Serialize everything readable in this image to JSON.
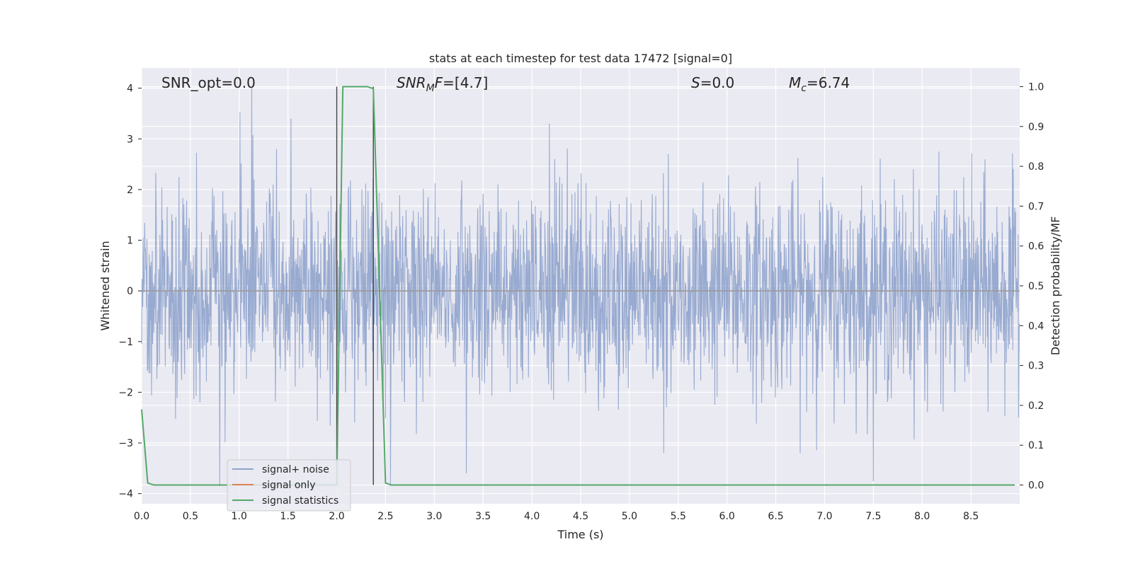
{
  "chart_data": {
    "type": "line",
    "title": "stats at each timestep for test data 17472 [signal=0]",
    "xlabel": "Time (s)",
    "ylabel_left": "Whitened strain",
    "ylabel_right": "Detection probability/MF",
    "xlim": [
      0.0,
      9.0
    ],
    "ylim_left": [
      -4.2,
      4.4
    ],
    "ylim_right": [
      -0.047,
      1.047
    ],
    "x_ticks": [
      "0.0",
      "0.5",
      "1.0",
      "1.5",
      "2.0",
      "2.5",
      "3.0",
      "3.5",
      "4.0",
      "4.5",
      "5.0",
      "5.5",
      "6.0",
      "6.5",
      "7.0",
      "7.5",
      "8.0",
      "8.5"
    ],
    "x_tick_values": [
      0.0,
      0.5,
      1.0,
      1.5,
      2.0,
      2.5,
      3.0,
      3.5,
      4.0,
      4.5,
      5.0,
      5.5,
      6.0,
      6.5,
      7.0,
      7.5,
      8.0,
      8.5
    ],
    "y_left_ticks": [
      "−4",
      "−3",
      "−2",
      "−1",
      "0",
      "1",
      "2",
      "3",
      "4"
    ],
    "y_left_tick_values": [
      -4,
      -3,
      -2,
      -1,
      0,
      1,
      2,
      3,
      4
    ],
    "y_right_ticks": [
      "0.0",
      "0.1",
      "0.2",
      "0.3",
      "0.4",
      "0.5",
      "0.6",
      "0.7",
      "0.8",
      "0.9",
      "1.0"
    ],
    "y_right_tick_values": [
      0.0,
      0.1,
      0.2,
      0.3,
      0.4,
      0.5,
      0.6,
      0.7,
      0.8,
      0.9,
      1.0
    ],
    "grid": true,
    "annotations": {
      "snr_opt": "SNR_opt=0.0",
      "snr_mf": "=[4.7]",
      "s_value": "=0.0",
      "mc_value": "=6.74"
    },
    "vertical_markers": [
      2.0,
      2.375
    ],
    "series": [
      {
        "name": "signal+ noise",
        "axis": "left",
        "color": "#8fa3cc",
        "kind": "noise",
        "sample_count": 2304,
        "extremes": [
          {
            "x": 0.8,
            "y": -3.85
          },
          {
            "x": 1.13,
            "y": 4.0
          },
          {
            "x": 1.53,
            "y": 3.4
          },
          {
            "x": 2.55,
            "y": -3.85
          },
          {
            "x": 3.33,
            "y": -3.6
          },
          {
            "x": 4.18,
            "y": 3.3
          },
          {
            "x": 5.35,
            "y": -3.2
          },
          {
            "x": 6.75,
            "y": -3.2
          }
        ]
      },
      {
        "name": "signal only",
        "axis": "left",
        "color": "#dd8452",
        "x": [
          0.0,
          9.0
        ],
        "y": [
          0.0,
          0.0
        ]
      },
      {
        "name": "signal statistics",
        "axis": "right",
        "color": "#55a868",
        "x": [
          0.0,
          0.0625,
          0.125,
          0.25,
          0.5,
          1.0,
          1.5,
          1.9375,
          2.0,
          2.0625,
          2.125,
          2.25,
          2.3125,
          2.375,
          2.4375,
          2.5,
          2.5625,
          3.0,
          4.0,
          5.0,
          6.0,
          7.0,
          8.0,
          8.95
        ],
        "y": [
          0.19,
          0.005,
          0.0,
          0.0,
          0.0,
          0.0,
          0.0,
          0.0,
          0.0,
          1.0,
          1.0,
          1.0,
          1.0,
          0.995,
          0.5,
          0.005,
          0.0,
          0.0,
          0.0,
          0.0,
          0.0,
          0.0,
          0.0,
          0.0
        ]
      }
    ],
    "legend": {
      "placement": "lower-left",
      "entries": [
        "signal+ noise",
        "signal only",
        "signal statistics"
      ]
    },
    "colors": {
      "background": "#eaeaf2",
      "grid": "#ffffff",
      "noise": "#8fa3cc",
      "signal_only": "#dd8452",
      "statistics": "#55a868",
      "marker": "#444444"
    }
  }
}
